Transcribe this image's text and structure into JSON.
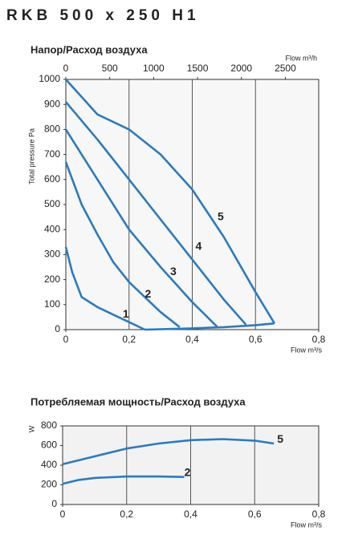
{
  "title": "RKB 500 x 250 H1",
  "chart_data": [
    {
      "type": "line",
      "title": "Напор/Расход воздуха",
      "ylabel": "Total pressure Pa",
      "xlabel": "Flow m³/s",
      "x2label": "Flow m³/h",
      "xlim": [
        0,
        0.8
      ],
      "xticks": [
        0,
        {
          "value": 0.2,
          "label": "0,2"
        },
        {
          "value": 0.4,
          "label": "0,4"
        },
        {
          "value": 0.6,
          "label": "0,6"
        },
        {
          "value": 0.8,
          "label": "0,8"
        }
      ],
      "x2lim": [
        0,
        2880
      ],
      "x2ticks": [
        0,
        500,
        1000,
        1500,
        2000,
        2500
      ],
      "ylim": [
        0,
        1000
      ],
      "yticks": [
        0,
        100,
        200,
        300,
        400,
        500,
        600,
        700,
        800,
        900,
        1000
      ],
      "grid": true,
      "color": "#2b7bbf",
      "series": [
        {
          "name": "1",
          "x": [
            0,
            0.02,
            0.05,
            0.1,
            0.15,
            0.2,
            0.25
          ],
          "values": [
            330,
            230,
            130,
            90,
            60,
            30,
            0
          ]
        },
        {
          "name": "2",
          "x": [
            0,
            0.05,
            0.1,
            0.15,
            0.2,
            0.25,
            0.3,
            0.36
          ],
          "values": [
            670,
            500,
            380,
            270,
            190,
            130,
            70,
            10
          ]
        },
        {
          "name": "3",
          "x": [
            0,
            0.1,
            0.2,
            0.3,
            0.4,
            0.48
          ],
          "values": [
            800,
            600,
            400,
            250,
            110,
            10
          ]
        },
        {
          "name": "4",
          "x": [
            0,
            0.1,
            0.2,
            0.3,
            0.4,
            0.5,
            0.57
          ],
          "values": [
            910,
            760,
            600,
            440,
            280,
            120,
            20
          ]
        },
        {
          "name": "5",
          "x": [
            0,
            0.1,
            0.2,
            0.3,
            0.4,
            0.5,
            0.6,
            0.66
          ],
          "values": [
            1000,
            860,
            800,
            700,
            560,
            370,
            150,
            25
          ]
        },
        {
          "x": [
            0.25,
            0.4,
            0.5,
            0.6,
            0.66
          ],
          "values": [
            0,
            5,
            10,
            18,
            25
          ]
        }
      ]
    },
    {
      "type": "line",
      "title": "Потребляемая мощность/Расход воздуха",
      "ylabel": "W",
      "xlabel": "Flow m³/s",
      "xlim": [
        0,
        0.8
      ],
      "xticks": [
        0,
        {
          "value": 0.2,
          "label": "0,2"
        },
        {
          "value": 0.4,
          "label": "0,4"
        },
        {
          "value": 0.6,
          "label": "0,6"
        },
        {
          "value": 0.8,
          "label": "0,8"
        }
      ],
      "ylim": [
        0,
        800
      ],
      "yticks": [
        0,
        200,
        400,
        600,
        800
      ],
      "grid": true,
      "color": "#2b7bbf",
      "series": [
        {
          "name": "5",
          "x": [
            0,
            0.1,
            0.2,
            0.3,
            0.4,
            0.5,
            0.6,
            0.66
          ],
          "values": [
            410,
            490,
            570,
            620,
            655,
            665,
            650,
            620
          ]
        },
        {
          "name": "2",
          "x": [
            0,
            0.05,
            0.1,
            0.2,
            0.3,
            0.38
          ],
          "values": [
            210,
            250,
            270,
            285,
            285,
            280
          ]
        }
      ]
    }
  ]
}
